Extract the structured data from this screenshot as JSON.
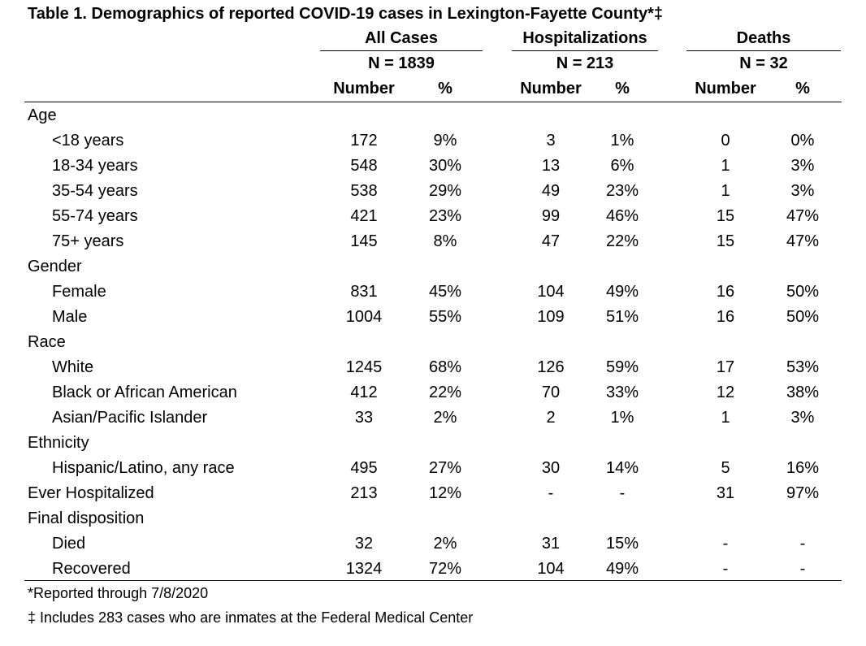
{
  "title": "Table 1. Demographics of reported COVID-19 cases in Lexington-Fayette County*‡",
  "groups": [
    {
      "name": "All Cases",
      "n": "N = 1839"
    },
    {
      "name": "Hospitalizations",
      "n": "N = 213"
    },
    {
      "name": "Deaths",
      "n": "N = 32"
    }
  ],
  "col_number": "Number",
  "col_pct": "%",
  "rows": [
    {
      "label": "Age",
      "sub": false,
      "v": [
        "",
        "",
        "",
        "",
        "",
        ""
      ]
    },
    {
      "label": "<18 years",
      "sub": true,
      "v": [
        "172",
        "9%",
        "3",
        "1%",
        "0",
        "0%"
      ]
    },
    {
      "label": "18-34 years",
      "sub": true,
      "v": [
        "548",
        "30%",
        "13",
        "6%",
        "1",
        "3%"
      ]
    },
    {
      "label": "35-54 years",
      "sub": true,
      "v": [
        "538",
        "29%",
        "49",
        "23%",
        "1",
        "3%"
      ]
    },
    {
      "label": "55-74 years",
      "sub": true,
      "v": [
        "421",
        "23%",
        "99",
        "46%",
        "15",
        "47%"
      ]
    },
    {
      "label": "75+ years",
      "sub": true,
      "v": [
        "145",
        "8%",
        "47",
        "22%",
        "15",
        "47%"
      ]
    },
    {
      "label": "Gender",
      "sub": false,
      "v": [
        "",
        "",
        "",
        "",
        "",
        ""
      ]
    },
    {
      "label": "Female",
      "sub": true,
      "v": [
        "831",
        "45%",
        "104",
        "49%",
        "16",
        "50%"
      ]
    },
    {
      "label": "Male",
      "sub": true,
      "v": [
        "1004",
        "55%",
        "109",
        "51%",
        "16",
        "50%"
      ]
    },
    {
      "label": "Race",
      "sub": false,
      "v": [
        "",
        "",
        "",
        "",
        "",
        ""
      ]
    },
    {
      "label": "White",
      "sub": true,
      "v": [
        "1245",
        "68%",
        "126",
        "59%",
        "17",
        "53%"
      ]
    },
    {
      "label": "Black or African American",
      "sub": true,
      "v": [
        "412",
        "22%",
        "70",
        "33%",
        "12",
        "38%"
      ]
    },
    {
      "label": "Asian/Pacific Islander",
      "sub": true,
      "v": [
        "33",
        "2%",
        "2",
        "1%",
        "1",
        "3%"
      ]
    },
    {
      "label": "Ethnicity",
      "sub": false,
      "v": [
        "",
        "",
        "",
        "",
        "",
        ""
      ]
    },
    {
      "label": "Hispanic/Latino, any race",
      "sub": true,
      "v": [
        "495",
        "27%",
        "30",
        "14%",
        "5",
        "16%"
      ]
    },
    {
      "label": "Ever Hospitalized",
      "sub": false,
      "v": [
        "213",
        "12%",
        "-",
        "-",
        "31",
        "97%"
      ]
    },
    {
      "label": "Final disposition",
      "sub": false,
      "v": [
        "",
        "",
        "",
        "",
        "",
        ""
      ]
    },
    {
      "label": "Died",
      "sub": true,
      "v": [
        "32",
        "2%",
        "31",
        "15%",
        "-",
        "-"
      ]
    },
    {
      "label": "Recovered",
      "sub": true,
      "v": [
        "1324",
        "72%",
        "104",
        "49%",
        "-",
        "-"
      ]
    }
  ],
  "footnotes": [
    "*Reported through 7/8/2020",
    "‡ Includes 283 cases who are inmates at the Federal Medical Center"
  ]
}
